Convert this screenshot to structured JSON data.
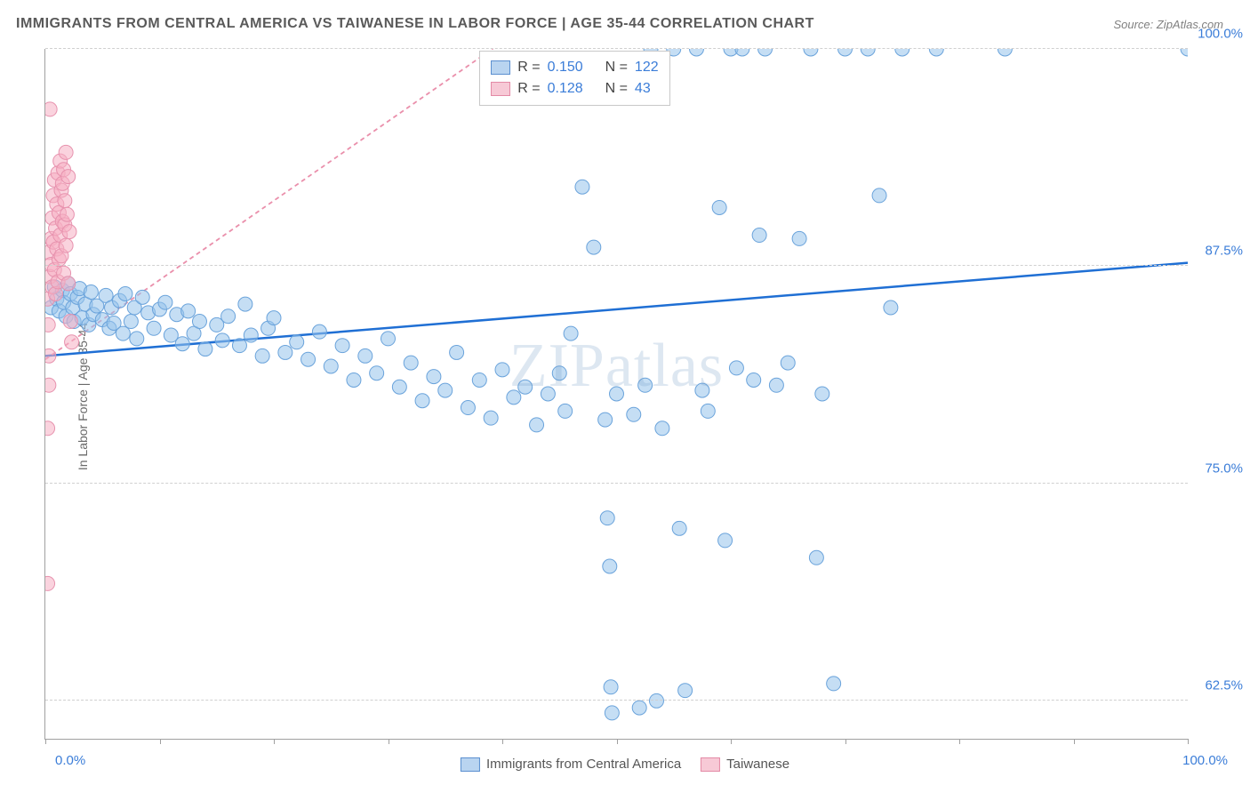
{
  "title": "IMMIGRANTS FROM CENTRAL AMERICA VS TAIWANESE IN LABOR FORCE | AGE 35-44 CORRELATION CHART",
  "source": "Source: ZipAtlas.com",
  "watermark": "ZIPatlas",
  "ylabel": "In Labor Force | Age 35-44",
  "xaxis": {
    "min_label": "0.0%",
    "max_label": "100.0%",
    "tick_positions_pct": [
      0,
      10,
      20,
      30,
      40,
      50,
      60,
      70,
      80,
      90,
      100
    ]
  },
  "yaxis": {
    "ticks": [
      {
        "label": "100.0%",
        "pos_pct": 100
      },
      {
        "label": "87.5%",
        "pos_pct": 68.5
      },
      {
        "label": "75.0%",
        "pos_pct": 37
      },
      {
        "label": "62.5%",
        "pos_pct": 5.5
      }
    ],
    "visible_min_value": 60.0,
    "visible_max_value": 100.0
  },
  "legend_top": {
    "rows": [
      {
        "swatch_fill": "#b9d4f0",
        "swatch_border": "#5b8fd0",
        "r": "0.150",
        "n": "122"
      },
      {
        "swatch_fill": "#f7c9d6",
        "swatch_border": "#e48aa6",
        "r": "0.128",
        "n": "43"
      }
    ],
    "r_label": "R =",
    "n_label": "N ="
  },
  "legend_bottom": {
    "items": [
      {
        "swatch_fill": "#b9d4f0",
        "swatch_border": "#5b8fd0",
        "label": "Immigrants from Central America"
      },
      {
        "swatch_fill": "#f7c9d6",
        "swatch_border": "#e48aa6",
        "label": "Taiwanese"
      }
    ]
  },
  "chart": {
    "type": "scatter",
    "background_color": "#ffffff",
    "grid_color": "#d0d0d0",
    "series": [
      {
        "name": "blue",
        "marker_fill": "rgba(150,195,235,0.55)",
        "marker_stroke": "#6aa3db",
        "marker_r": 8,
        "trend_color": "#1f6fd4",
        "trend_width": 2.5,
        "trend_dash": "none",
        "trend_y_at_x0": 82.2,
        "trend_y_at_x100": 87.6,
        "points": [
          [
            0.5,
            85
          ],
          [
            0.8,
            86.2
          ],
          [
            1,
            85.5
          ],
          [
            1.2,
            84.8
          ],
          [
            1.5,
            86
          ],
          [
            1.6,
            85.3
          ],
          [
            1.8,
            84.5
          ],
          [
            2,
            86.4
          ],
          [
            2.2,
            85.8
          ],
          [
            2.4,
            85
          ],
          [
            2.5,
            84.2
          ],
          [
            2.8,
            85.6
          ],
          [
            3,
            86.1
          ],
          [
            3.2,
            84.4
          ],
          [
            3.5,
            85.2
          ],
          [
            3.8,
            84
          ],
          [
            4,
            85.9
          ],
          [
            4.2,
            84.6
          ],
          [
            4.5,
            85.1
          ],
          [
            5,
            84.3
          ],
          [
            5.3,
            85.7
          ],
          [
            5.6,
            83.8
          ],
          [
            5.8,
            85
          ],
          [
            6,
            84.1
          ],
          [
            6.5,
            85.4
          ],
          [
            6.8,
            83.5
          ],
          [
            7,
            85.8
          ],
          [
            7.5,
            84.2
          ],
          [
            7.8,
            85
          ],
          [
            8,
            83.2
          ],
          [
            8.5,
            85.6
          ],
          [
            9,
            84.7
          ],
          [
            9.5,
            83.8
          ],
          [
            10,
            84.9
          ],
          [
            10.5,
            85.3
          ],
          [
            11,
            83.4
          ],
          [
            11.5,
            84.6
          ],
          [
            12,
            82.9
          ],
          [
            12.5,
            84.8
          ],
          [
            13,
            83.5
          ],
          [
            13.5,
            84.2
          ],
          [
            14,
            82.6
          ],
          [
            15,
            84
          ],
          [
            15.5,
            83.1
          ],
          [
            16,
            84.5
          ],
          [
            17,
            82.8
          ],
          [
            17.5,
            85.2
          ],
          [
            18,
            83.4
          ],
          [
            19,
            82.2
          ],
          [
            19.5,
            83.8
          ],
          [
            20,
            84.4
          ],
          [
            21,
            82.4
          ],
          [
            22,
            83
          ],
          [
            23,
            82
          ],
          [
            24,
            83.6
          ],
          [
            25,
            81.6
          ],
          [
            26,
            82.8
          ],
          [
            27,
            80.8
          ],
          [
            28,
            82.2
          ],
          [
            29,
            81.2
          ],
          [
            30,
            83.2
          ],
          [
            31,
            80.4
          ],
          [
            32,
            81.8
          ],
          [
            33,
            79.6
          ],
          [
            34,
            81
          ],
          [
            35,
            80.2
          ],
          [
            36,
            82.4
          ],
          [
            37,
            79.2
          ],
          [
            38,
            80.8
          ],
          [
            39,
            78.6
          ],
          [
            40,
            81.4
          ],
          [
            41,
            79.8
          ],
          [
            42,
            80.4
          ],
          [
            43,
            78.2
          ],
          [
            44,
            80
          ],
          [
            45,
            81.2
          ],
          [
            45.5,
            79
          ],
          [
            46,
            83.5
          ],
          [
            47,
            92
          ],
          [
            48,
            88.5
          ],
          [
            49,
            78.5
          ],
          [
            49.2,
            72.8
          ],
          [
            49.4,
            70
          ],
          [
            49.5,
            63
          ],
          [
            49.6,
            61.5
          ],
          [
            50,
            80
          ],
          [
            51,
            99
          ],
          [
            51.5,
            78.8
          ],
          [
            52,
            61.8
          ],
          [
            52.5,
            80.5
          ],
          [
            53,
            100
          ],
          [
            53.5,
            62.2
          ],
          [
            54,
            78
          ],
          [
            55,
            100
          ],
          [
            55.5,
            72.2
          ],
          [
            56,
            62.8
          ],
          [
            57,
            100
          ],
          [
            57.5,
            80.2
          ],
          [
            58,
            79
          ],
          [
            59,
            90.8
          ],
          [
            59.5,
            71.5
          ],
          [
            60,
            100
          ],
          [
            60.5,
            81.5
          ],
          [
            61,
            100
          ],
          [
            62,
            80.8
          ],
          [
            62.5,
            89.2
          ],
          [
            63,
            100
          ],
          [
            64,
            80.5
          ],
          [
            65,
            81.8
          ],
          [
            66,
            89
          ],
          [
            67,
            100
          ],
          [
            67.5,
            70.5
          ],
          [
            68,
            80
          ],
          [
            69,
            63.2
          ],
          [
            70,
            100
          ],
          [
            72,
            100
          ],
          [
            73,
            91.5
          ],
          [
            74,
            85
          ],
          [
            75,
            100
          ],
          [
            78,
            100
          ],
          [
            84,
            100
          ],
          [
            100,
            100
          ]
        ]
      },
      {
        "name": "pink",
        "marker_fill": "rgba(245,175,195,0.55)",
        "marker_stroke": "#e792ae",
        "marker_r": 8,
        "trend_color": "#ea8fab",
        "trend_width": 1.8,
        "trend_dash": "5,4",
        "trend_y_at_x0": 82,
        "trend_y_at_x100": 128,
        "points": [
          [
            0.2,
            85.5
          ],
          [
            0.3,
            88.2
          ],
          [
            0.4,
            86.8
          ],
          [
            0.5,
            87.5
          ],
          [
            0.5,
            89
          ],
          [
            0.6,
            90.2
          ],
          [
            0.6,
            86.2
          ],
          [
            0.7,
            88.8
          ],
          [
            0.7,
            91.5
          ],
          [
            0.8,
            87.2
          ],
          [
            0.8,
            92.4
          ],
          [
            0.9,
            89.6
          ],
          [
            0.9,
            85.8
          ],
          [
            1,
            91
          ],
          [
            1,
            88.4
          ],
          [
            1.1,
            92.8
          ],
          [
            1.1,
            86.5
          ],
          [
            1.2,
            90.5
          ],
          [
            1.2,
            87.8
          ],
          [
            1.3,
            93.5
          ],
          [
            1.3,
            89.2
          ],
          [
            1.4,
            91.8
          ],
          [
            1.4,
            88
          ],
          [
            1.5,
            90
          ],
          [
            1.5,
            92.2
          ],
          [
            1.6,
            87
          ],
          [
            1.6,
            93
          ],
          [
            1.7,
            89.8
          ],
          [
            1.7,
            91.2
          ],
          [
            1.8,
            88.6
          ],
          [
            1.8,
            94
          ],
          [
            1.9,
            90.4
          ],
          [
            2,
            86.4
          ],
          [
            2,
            92.6
          ],
          [
            2.1,
            89.4
          ],
          [
            2.2,
            84.2
          ],
          [
            2.3,
            83
          ],
          [
            0.3,
            82.2
          ],
          [
            0.4,
            96.5
          ],
          [
            0.2,
            69
          ],
          [
            0.2,
            78
          ],
          [
            0.3,
            80.5
          ],
          [
            0.25,
            84
          ]
        ]
      }
    ]
  }
}
